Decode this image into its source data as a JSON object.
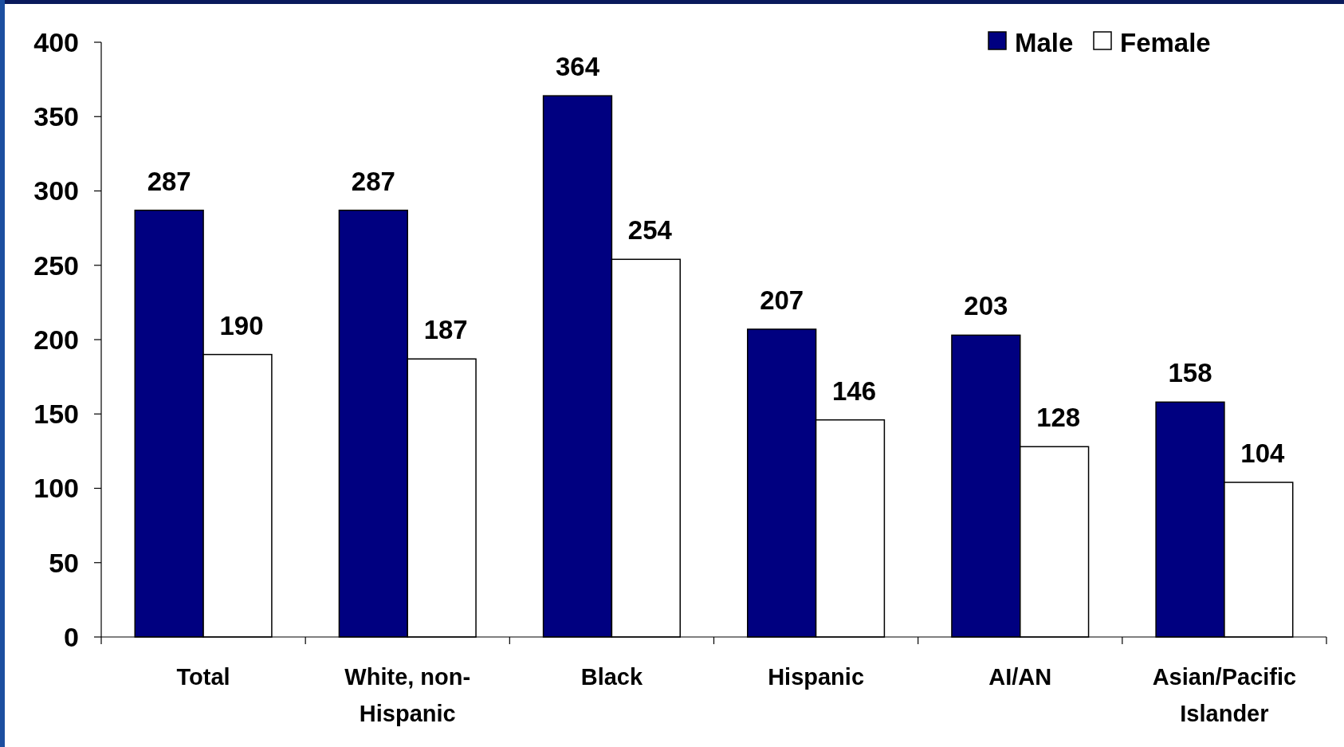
{
  "chart_data": {
    "type": "bar",
    "categories": [
      "Total",
      "White, non-Hispanic",
      "Black",
      "Hispanic",
      "AI/AN",
      "Asian/Pacific Islander"
    ],
    "series": [
      {
        "name": "Male",
        "color": "#000080",
        "values": [
          287,
          287,
          364,
          207,
          203,
          158
        ]
      },
      {
        "name": "Female",
        "color": "#ffffff",
        "values": [
          190,
          187,
          254,
          146,
          128,
          104
        ]
      }
    ],
    "ylim": [
      0,
      400
    ],
    "yticks": [
      0,
      50,
      100,
      150,
      200,
      250,
      300,
      350,
      400
    ],
    "grid": false,
    "legend": "top right",
    "data_labels": true
  }
}
